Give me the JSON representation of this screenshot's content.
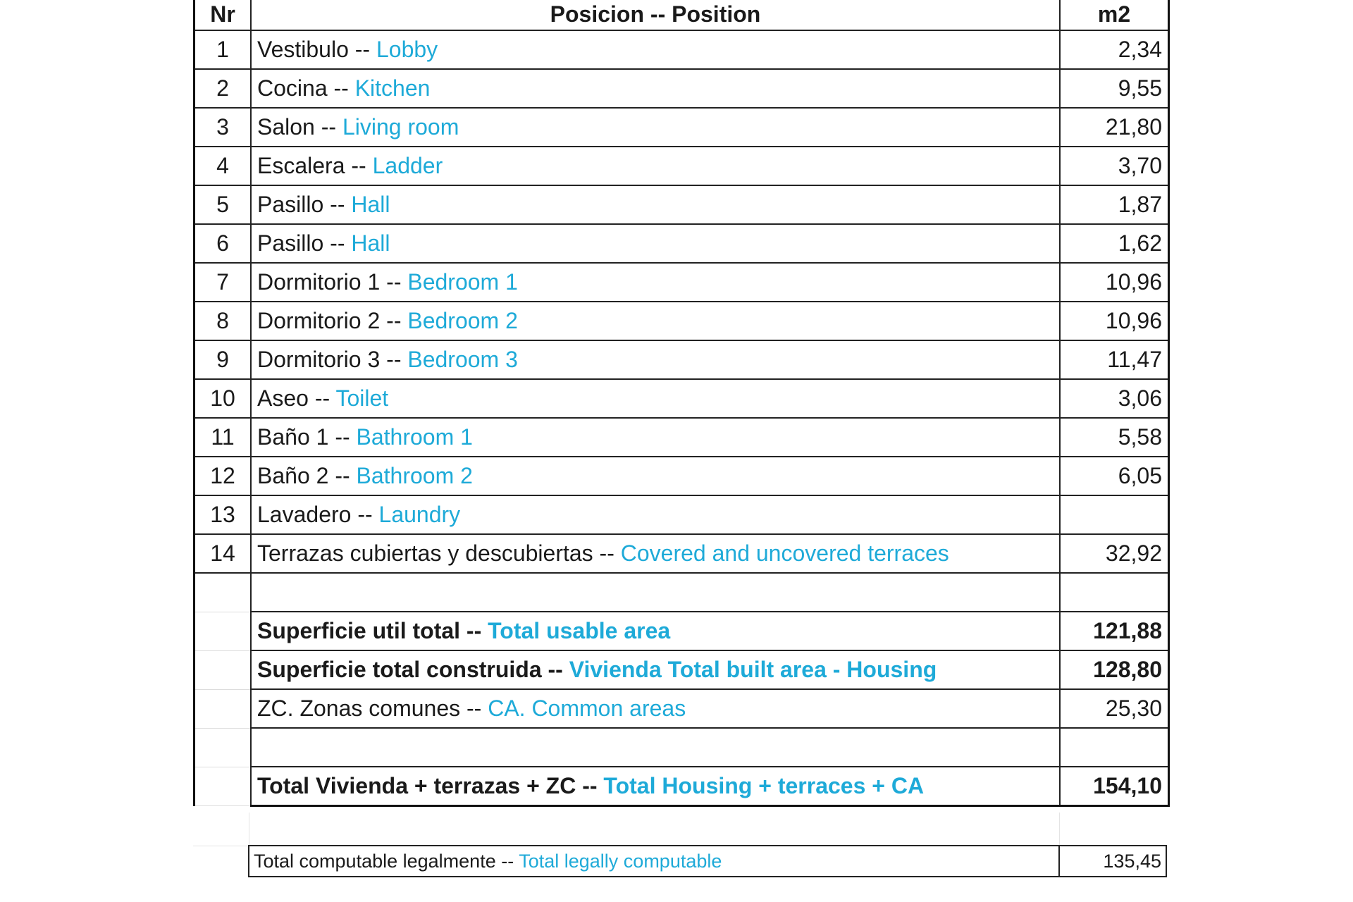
{
  "header": {
    "nr": "Nr",
    "position": "Posicion -- Position",
    "m2": "m2"
  },
  "rows": [
    {
      "nr": "1",
      "es": "Vestibulo -- ",
      "en": "Lobby",
      "m2": "2,34"
    },
    {
      "nr": "2",
      "es": "Cocina --  ",
      "en": "Kitchen",
      "m2": "9,55"
    },
    {
      "nr": "3",
      "es": "Salon -- ",
      "en": "Living room",
      "m2": "21,80"
    },
    {
      "nr": "4",
      "es": "Escalera -- ",
      "en": "Ladder",
      "m2": "3,70"
    },
    {
      "nr": "5",
      "es": "Pasillo -- ",
      "en": "Hall",
      "m2": "1,87"
    },
    {
      "nr": "6",
      "es": "Pasillo -- ",
      "en": "Hall",
      "m2": "1,62"
    },
    {
      "nr": "7",
      "es": "Dormitorio 1 -- ",
      "en": "Bedroom 1",
      "m2": "10,96"
    },
    {
      "nr": "8",
      "es": "Dormitorio 2 -- ",
      "en": "Bedroom 2",
      "m2": "10,96"
    },
    {
      "nr": "9",
      "es": "Dormitorio 3 -- ",
      "en": "Bedroom 3",
      "m2": "11,47"
    },
    {
      "nr": "10",
      "es": "Aseo -- ",
      "en": "Toilet",
      "m2": "3,06"
    },
    {
      "nr": "11",
      "es": "Baño 1 -- ",
      "en": "Bathroom 1",
      "m2": "5,58"
    },
    {
      "nr": "12",
      "es": "Baño 2 -- ",
      "en": "Bathroom 2",
      "m2": "6,05"
    },
    {
      "nr": "13",
      "es": "Lavadero -- ",
      "en": "Laundry",
      "m2": ""
    },
    {
      "nr": "14",
      "es": "Terrazas cubiertas y descubiertas -- ",
      "en": "Covered and uncovered terraces",
      "m2": "32,92"
    }
  ],
  "summary": {
    "usable": {
      "es": "Superficie util total -- ",
      "en": "Total usable area",
      "m2": "121,88"
    },
    "built": {
      "es": "Superficie total construida -- ",
      "en": "Vivienda Total built area - Housing",
      "m2": "128,80"
    },
    "common": {
      "es": "ZC. Zonas comunes  -- ",
      "en": "CA. Common areas",
      "m2": "25,30"
    },
    "total": {
      "es": "Total Vivienda + terrazas + ZC  -- ",
      "en": "Total Housing + terraces + CA",
      "m2": "154,10"
    },
    "legal": {
      "es": "Total computable legalmente -- ",
      "en": "Total legally computable",
      "m2": "135,45"
    }
  },
  "colors": {
    "english_text": "#1eaad8",
    "text": "#1a1a1a"
  }
}
